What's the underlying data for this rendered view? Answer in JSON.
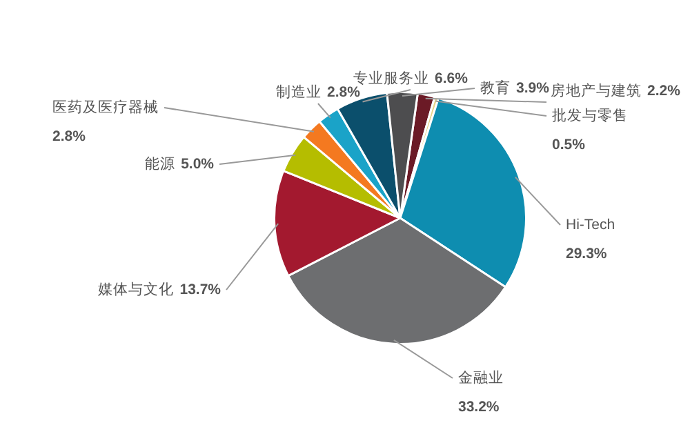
{
  "chart_data": {
    "type": "pie",
    "categories": [
      "房地产与建筑",
      "批发与零售",
      "Hi-Tech",
      "金融业",
      "媒体与文化",
      "能源",
      "医药及医疗器械",
      "制造业",
      "专业服务业",
      "教育"
    ],
    "values": [
      2.2,
      0.5,
      29.3,
      33.2,
      13.7,
      5.0,
      2.8,
      2.8,
      6.6,
      3.9
    ],
    "value_labels": [
      "2.2%",
      "0.5%",
      "29.3%",
      "33.2%",
      "13.7%",
      "5.0%",
      "2.8%",
      "2.8%",
      "6.6%",
      "3.9%"
    ],
    "colors": [
      "#6b1a26",
      "#e8d48a",
      "#0e8db0",
      "#6d6e70",
      "#a3192f",
      "#b5bd00",
      "#f47920",
      "#1aa3c8",
      "#0b4f6c",
      "#4d4d4f"
    ]
  }
}
